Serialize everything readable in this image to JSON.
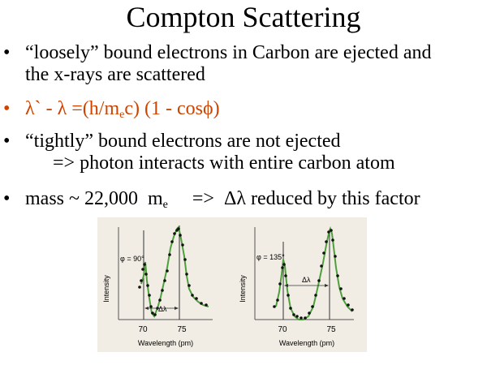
{
  "slide": {
    "title": "Compton Scattering",
    "bullets": [
      {
        "line1": "“loosely” bound electrons in Carbon are ejected and",
        "line2": "the x-rays are scattered"
      },
      {
        "pre": "λ` - λ =(h/m",
        "sub": "e",
        "post": "c) (1 - cosϕ)",
        "color": "#cc4400"
      },
      {
        "line1": "“tightly” bound electrons are not ejected",
        "line2": "=> photon interacts with entire carbon atom"
      },
      {
        "pre": "mass ~ 22,000  m",
        "sub": "e",
        "post": "     =>  Δλ reduced by this factor"
      }
    ],
    "bullet_symbol": "•"
  },
  "figure": {
    "panels": [
      {
        "angle_label": "φ = 90°",
        "shift_label": "Δλ",
        "ylabel": "Intensity",
        "xlabel": "Wavelength (pm)",
        "ticks": [
          "70",
          "75"
        ],
        "line_color": "#4ea03c"
      },
      {
        "angle_label": "φ = 135°",
        "shift_label": "Δλ",
        "ylabel": "Intensity",
        "xlabel": "Wavelength (pm)",
        "ticks": [
          "70",
          "75"
        ],
        "line_color": "#4ea03c"
      }
    ]
  }
}
